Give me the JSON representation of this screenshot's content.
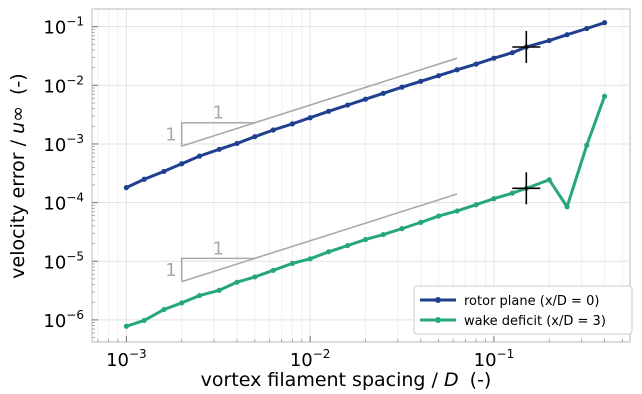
{
  "chart_data": {
    "type": "line",
    "xlabel": "vortex filament spacing /",
    "xlabel_var": "D",
    "xlabel_unit": "(-)",
    "ylabel": "velocity error /",
    "ylabel_var": "u∞",
    "ylabel_unit": "(-)",
    "x_scale": "log",
    "y_scale": "log",
    "xlim": [
      0.00065,
      0.55
    ],
    "ylim": [
      4.2e-07,
      0.2
    ],
    "x_ticks": [
      {
        "value": 0.001,
        "base": "10",
        "exp": "−3"
      },
      {
        "value": 0.01,
        "base": "10",
        "exp": "−2"
      },
      {
        "value": 0.1,
        "base": "10",
        "exp": "−1"
      }
    ],
    "y_ticks": [
      {
        "value": 1e-06,
        "base": "10",
        "exp": "−6"
      },
      {
        "value": 1e-05,
        "base": "10",
        "exp": "−5"
      },
      {
        "value": 0.0001,
        "base": "10",
        "exp": "−4"
      },
      {
        "value": 0.001,
        "base": "10",
        "exp": "−3"
      },
      {
        "value": 0.01,
        "base": "10",
        "exp": "−2"
      },
      {
        "value": 0.1,
        "base": "10",
        "exp": "−1"
      }
    ],
    "grid": true,
    "legend_position": "lower-right",
    "series": [
      {
        "name": "rotor plane",
        "name_math": "(x/D = 0)",
        "color": "#1f3f8f",
        "x": [
          0.001,
          0.00125,
          0.0016,
          0.002,
          0.0025,
          0.0032,
          0.004,
          0.005,
          0.0063,
          0.008,
          0.01,
          0.0126,
          0.016,
          0.02,
          0.025,
          0.0316,
          0.04,
          0.05,
          0.063,
          0.08,
          0.1,
          0.126,
          0.15,
          0.2,
          0.25,
          0.32,
          0.4
        ],
        "y": [
          0.00018,
          0.00025,
          0.00034,
          0.00046,
          0.00062,
          0.00081,
          0.00102,
          0.00133,
          0.00173,
          0.0022,
          0.0028,
          0.0036,
          0.0046,
          0.0058,
          0.0073,
          0.0093,
          0.0117,
          0.0146,
          0.0184,
          0.023,
          0.029,
          0.036,
          0.045,
          0.058,
          0.073,
          0.093,
          0.117
        ]
      },
      {
        "name": "wake deficit",
        "name_math": "(x/D = 3)",
        "color": "#26a67f",
        "x": [
          0.001,
          0.00125,
          0.0016,
          0.002,
          0.0025,
          0.0032,
          0.004,
          0.005,
          0.0063,
          0.008,
          0.01,
          0.0126,
          0.016,
          0.02,
          0.025,
          0.0316,
          0.04,
          0.05,
          0.063,
          0.08,
          0.1,
          0.126,
          0.15,
          0.2,
          0.25,
          0.32,
          0.4
        ],
        "y": [
          7.8e-07,
          9.8e-07,
          1.5e-06,
          1.95e-06,
          2.6e-06,
          3.2e-06,
          4.4e-06,
          5.4e-06,
          7e-06,
          9.2e-06,
          1.1e-05,
          1.45e-05,
          1.85e-05,
          2.35e-05,
          2.85e-05,
          3.6e-05,
          4.6e-05,
          5.9e-05,
          7.2e-05,
          9.2e-05,
          0.000117,
          0.000145,
          0.000175,
          0.000245,
          8.5e-05,
          0.00095,
          0.0065
        ]
      }
    ],
    "reference_lines": [
      {
        "color": "#aaaaaa",
        "x": [
          0.002,
          0.063
        ],
        "y": [
          0.00092,
          0.029
        ],
        "triangle": {
          "x0": 0.002,
          "x1": 0.005,
          "y0": 0.00092,
          "y1": 0.0023
        },
        "slope_label_top": "1",
        "slope_label_side": "1"
      },
      {
        "color": "#aaaaaa",
        "x": [
          0.002,
          0.063
        ],
        "y": [
          4.5e-06,
          0.00014
        ],
        "triangle": {
          "x0": 0.002,
          "x1": 0.005,
          "y0": 4.5e-06,
          "y1": 1.12e-05
        },
        "slope_label_top": "1",
        "slope_label_side": "1"
      }
    ],
    "markers": [
      {
        "type": "cross",
        "x": 0.15,
        "y": 0.045
      },
      {
        "type": "cross",
        "x": 0.15,
        "y": 0.000175
      }
    ]
  }
}
